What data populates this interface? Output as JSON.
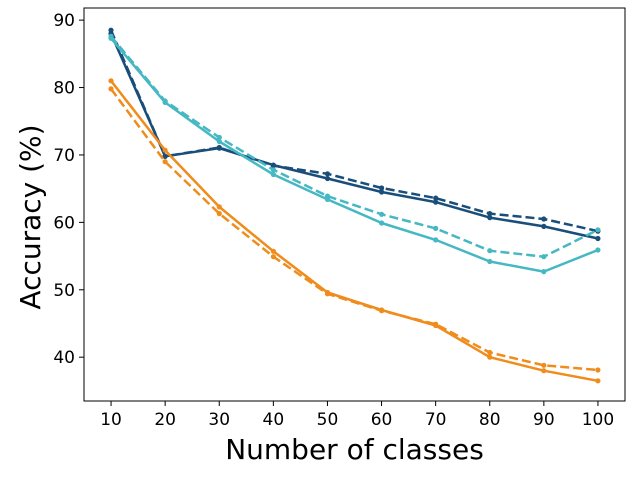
{
  "chart_data": {
    "type": "line",
    "title": "",
    "xlabel": "Number of classes",
    "ylabel": "Accuracy (%)",
    "x": [
      10,
      20,
      30,
      40,
      50,
      60,
      70,
      80,
      90,
      100
    ],
    "xlim": [
      5,
      105
    ],
    "ylim": [
      33.5,
      91.8
    ],
    "xticks": [
      10,
      20,
      30,
      40,
      50,
      60,
      70,
      80,
      90,
      100
    ],
    "yticks": [
      40,
      50,
      60,
      70,
      80,
      90
    ],
    "grid": false,
    "legend": false,
    "series": [
      {
        "color": "#1a4e7a",
        "style": "solid",
        "values": [
          88.0,
          69.8,
          71.0,
          68.5,
          66.5,
          64.5,
          63.0,
          60.7,
          59.4,
          57.6
        ]
      },
      {
        "color": "#1a4e7a",
        "style": "dashed",
        "values": [
          88.5,
          69.8,
          71.1,
          68.4,
          67.2,
          65.1,
          63.6,
          61.3,
          60.5,
          58.7
        ]
      },
      {
        "color": "#45b8c3",
        "style": "solid",
        "values": [
          87.3,
          77.8,
          72.0,
          67.1,
          63.4,
          59.9,
          57.4,
          54.2,
          52.7,
          55.9
        ]
      },
      {
        "color": "#45b8c3",
        "style": "dashed",
        "values": [
          87.6,
          78.0,
          72.6,
          67.8,
          63.9,
          61.2,
          59.1,
          55.8,
          54.9,
          58.9
        ]
      },
      {
        "color": "#ef8c1b",
        "style": "solid",
        "values": [
          81.0,
          70.7,
          62.3,
          55.7,
          49.6,
          47.0,
          44.7,
          40.0,
          38.0,
          36.5
        ]
      },
      {
        "color": "#ef8c1b",
        "style": "dashed",
        "values": [
          79.8,
          69.0,
          61.3,
          54.9,
          49.4,
          46.9,
          44.9,
          40.7,
          38.8,
          38.1
        ]
      }
    ]
  }
}
